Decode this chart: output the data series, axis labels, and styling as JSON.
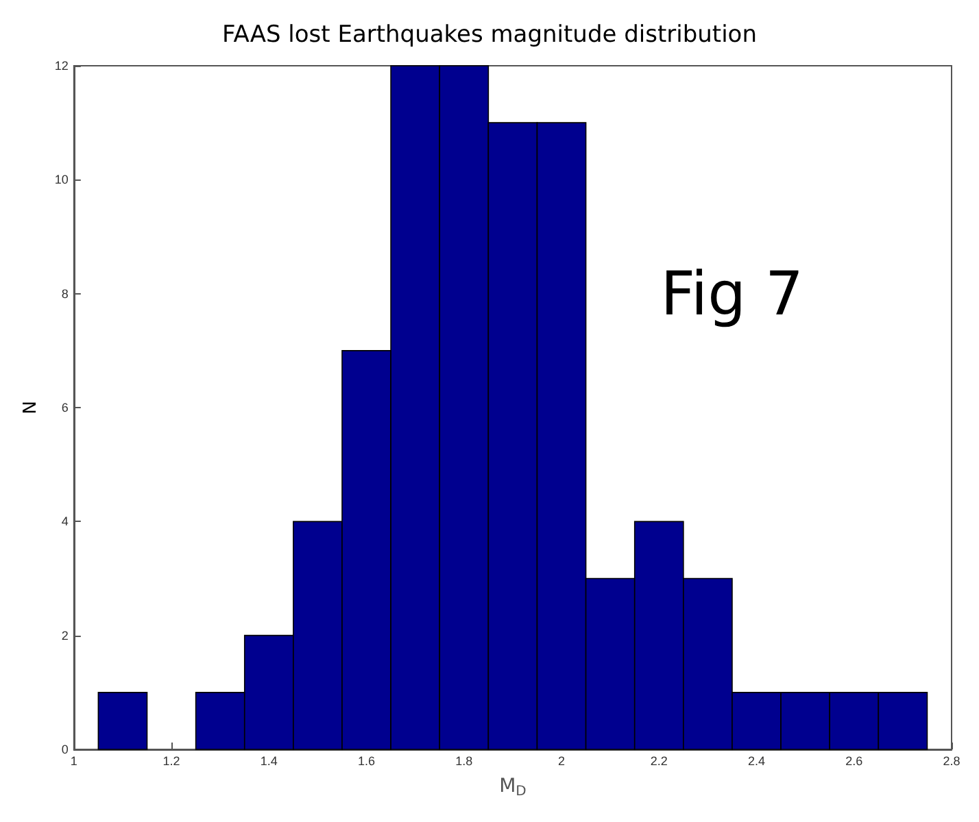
{
  "chart_data": {
    "type": "histogram",
    "title": "FAAS lost Earthquakes magnitude distribution",
    "xlabel": "M$_{D}$",
    "ylabel": "N",
    "annotations": [
      "Fig 7"
    ],
    "bins": [
      1.05,
      1.15,
      1.25,
      1.35,
      1.45,
      1.55,
      1.65,
      1.75,
      1.85,
      1.95,
      2.05,
      2.15,
      2.25,
      2.35,
      2.45,
      2.55,
      2.65,
      2.75
    ],
    "values": [
      1,
      0,
      1,
      2,
      4,
      7,
      12,
      12,
      11,
      11,
      3,
      4,
      3,
      1,
      1,
      1,
      1
    ],
    "color": "#00008f",
    "xlim": [
      1,
      2.8
    ],
    "xticks": [
      1,
      1.2,
      1.4,
      1.6,
      1.8,
      2,
      2.2,
      2.4,
      2.6,
      2.8
    ],
    "ylim": [
      0,
      12
    ],
    "yticks": [
      0,
      2,
      4,
      6,
      8,
      10,
      12
    ],
    "grid": false
  }
}
